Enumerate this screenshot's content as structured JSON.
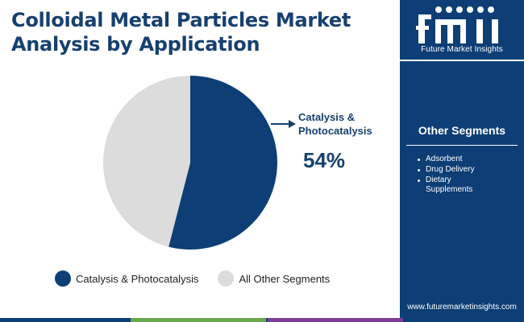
{
  "title_lines": [
    "Colloidal Metal Particles Market",
    "Analysis by Application"
  ],
  "brand": {
    "tagline": "Future Market Insights",
    "website": "www.futuremarketinsights.com",
    "primary_color": "#0d3e75",
    "accent_color": "#16406f"
  },
  "chart_data": {
    "type": "pie",
    "slices": [
      {
        "label": "Catalysis & Photocatalysis",
        "value": 54,
        "color": "#0d3e75"
      },
      {
        "label": "All Other Segments",
        "value": 46,
        "color": "#dcdcdc"
      }
    ],
    "start_angle_deg": 0,
    "direction": "clockwise",
    "legend_position": "bottom",
    "callout": {
      "label_lines": [
        "Catalysis &",
        "Photocatalysis"
      ],
      "value": "54%"
    }
  },
  "other_segments": {
    "title": "Other Segments",
    "items": [
      "Adsorbent",
      "Drug Delivery",
      "Dietary Supplements"
    ]
  },
  "bottom_bar_colors": [
    "#0d3e75",
    "#6aa84f",
    "#0d3e75",
    "#7b3f98",
    "#0d3e75"
  ]
}
